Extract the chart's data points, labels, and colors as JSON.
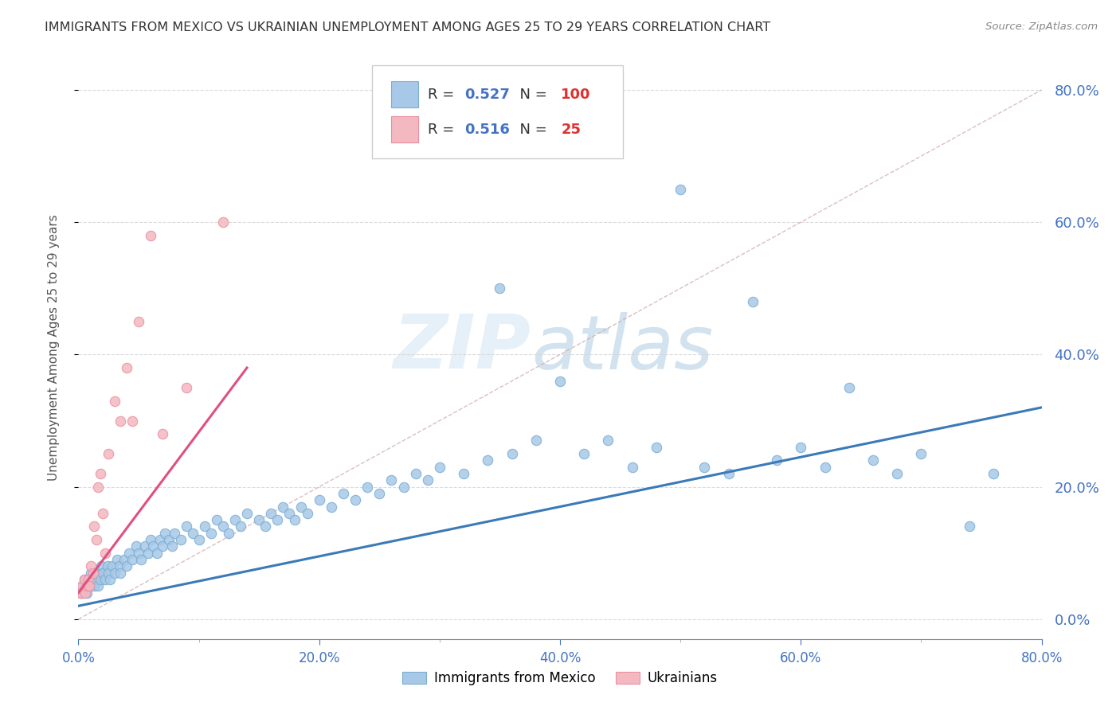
{
  "title": "IMMIGRANTS FROM MEXICO VS UKRAINIAN UNEMPLOYMENT AMONG AGES 25 TO 29 YEARS CORRELATION CHART",
  "source": "Source: ZipAtlas.com",
  "ylabel": "Unemployment Among Ages 25 to 29 years",
  "legend_label1": "Immigrants from Mexico",
  "legend_label2": "Ukrainians",
  "r1": "0.527",
  "n1": "100",
  "r2": "0.516",
  "n2": "25",
  "xlim": [
    0.0,
    0.8
  ],
  "ylim": [
    -0.03,
    0.85
  ],
  "watermark_zip": "ZIP",
  "watermark_atlas": "atlas",
  "mexico_color": "#a8c8e8",
  "ukraine_color": "#f4b8c0",
  "mexico_edge": "#7aaed0",
  "ukraine_edge": "#e890a0",
  "trend_color_mexico": "#3a7ab8",
  "trend_color_ukraine": "#e05080",
  "diag_color": "#d0b0b0",
  "grid_color": "#d8d8d8",
  "mexico_x": [
    0.002,
    0.003,
    0.004,
    0.005,
    0.006,
    0.007,
    0.008,
    0.009,
    0.01,
    0.012,
    0.013,
    0.014,
    0.015,
    0.016,
    0.017,
    0.018,
    0.019,
    0.02,
    0.022,
    0.024,
    0.025,
    0.026,
    0.028,
    0.03,
    0.032,
    0.034,
    0.035,
    0.038,
    0.04,
    0.042,
    0.045,
    0.048,
    0.05,
    0.052,
    0.055,
    0.058,
    0.06,
    0.062,
    0.065,
    0.068,
    0.07,
    0.072,
    0.075,
    0.078,
    0.08,
    0.085,
    0.09,
    0.095,
    0.1,
    0.105,
    0.11,
    0.115,
    0.12,
    0.125,
    0.13,
    0.135,
    0.14,
    0.15,
    0.155,
    0.16,
    0.165,
    0.17,
    0.175,
    0.18,
    0.185,
    0.19,
    0.2,
    0.21,
    0.22,
    0.23,
    0.24,
    0.25,
    0.26,
    0.27,
    0.28,
    0.29,
    0.3,
    0.32,
    0.34,
    0.35,
    0.36,
    0.38,
    0.4,
    0.42,
    0.44,
    0.46,
    0.48,
    0.5,
    0.52,
    0.54,
    0.56,
    0.58,
    0.6,
    0.62,
    0.64,
    0.66,
    0.68,
    0.7,
    0.74,
    0.76
  ],
  "mexico_y": [
    0.04,
    0.05,
    0.04,
    0.06,
    0.05,
    0.04,
    0.06,
    0.05,
    0.07,
    0.06,
    0.05,
    0.07,
    0.06,
    0.05,
    0.07,
    0.06,
    0.08,
    0.07,
    0.06,
    0.08,
    0.07,
    0.06,
    0.08,
    0.07,
    0.09,
    0.08,
    0.07,
    0.09,
    0.08,
    0.1,
    0.09,
    0.11,
    0.1,
    0.09,
    0.11,
    0.1,
    0.12,
    0.11,
    0.1,
    0.12,
    0.11,
    0.13,
    0.12,
    0.11,
    0.13,
    0.12,
    0.14,
    0.13,
    0.12,
    0.14,
    0.13,
    0.15,
    0.14,
    0.13,
    0.15,
    0.14,
    0.16,
    0.15,
    0.14,
    0.16,
    0.15,
    0.17,
    0.16,
    0.15,
    0.17,
    0.16,
    0.18,
    0.17,
    0.19,
    0.18,
    0.2,
    0.19,
    0.21,
    0.2,
    0.22,
    0.21,
    0.23,
    0.22,
    0.24,
    0.5,
    0.25,
    0.27,
    0.36,
    0.25,
    0.27,
    0.23,
    0.26,
    0.65,
    0.23,
    0.22,
    0.48,
    0.24,
    0.26,
    0.23,
    0.35,
    0.24,
    0.22,
    0.25,
    0.14,
    0.22
  ],
  "ukraine_x": [
    0.002,
    0.003,
    0.005,
    0.006,
    0.007,
    0.008,
    0.009,
    0.01,
    0.012,
    0.013,
    0.015,
    0.016,
    0.018,
    0.02,
    0.022,
    0.025,
    0.03,
    0.035,
    0.04,
    0.045,
    0.05,
    0.06,
    0.07,
    0.09,
    0.12
  ],
  "ukraine_y": [
    0.04,
    0.05,
    0.06,
    0.04,
    0.05,
    0.06,
    0.05,
    0.08,
    0.07,
    0.14,
    0.12,
    0.2,
    0.22,
    0.16,
    0.1,
    0.25,
    0.33,
    0.3,
    0.38,
    0.3,
    0.45,
    0.58,
    0.28,
    0.35,
    0.6
  ],
  "trend_mex_x0": 0.0,
  "trend_mex_x1": 0.8,
  "trend_mex_y0": 0.02,
  "trend_mex_y1": 0.32,
  "trend_ukr_x0": 0.0,
  "trend_ukr_x1": 0.14,
  "trend_ukr_y0": 0.04,
  "trend_ukr_y1": 0.38
}
